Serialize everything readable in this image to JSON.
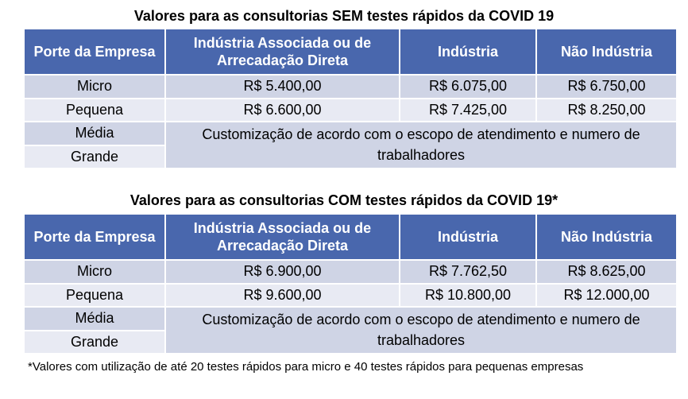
{
  "table1": {
    "title": "Valores para as consultorias SEM testes rápidos da COVID 19",
    "headers": [
      "Porte da Empresa",
      "Indústria Associada ou de Arrecadação Direta",
      "Indústria",
      "Não Indústria"
    ],
    "rows": [
      [
        "Micro",
        "R$ 5.400,00",
        "R$ 6.075,00",
        "R$ 6.750,00"
      ],
      [
        "Pequena",
        "R$ 6.600,00",
        "R$ 7.425,00",
        "R$ 8.250,00"
      ]
    ],
    "media": "Média",
    "grande": "Grande",
    "custom": "Customização de acordo com o escopo de atendimento e numero de trabalhadores"
  },
  "table2": {
    "title": "Valores para as consultorias COM testes rápidos da COVID 19*",
    "headers": [
      "Porte da Empresa",
      "Indústria Associada ou de Arrecadação Direta",
      "Indústria",
      "Não Indústria"
    ],
    "rows": [
      [
        "Micro",
        "R$ 6.900,00",
        "R$ 7.762,50",
        "R$ 8.625,00"
      ],
      [
        "Pequena",
        "R$ 9.600,00",
        "R$ 10.800,00",
        "R$ 12.000,00"
      ]
    ],
    "media": "Média",
    "grande": "Grande",
    "custom": "Customização de acordo com o escopo de atendimento e numero de trabalhadores"
  },
  "footnote": "*Valores com utilização de até 20 testes rápidos para micro e 40 testes rápidos para pequenas empresas",
  "colors": {
    "header": "#4967ad",
    "row_dark": "#cfd4e5",
    "row_light": "#e8eaf3"
  }
}
